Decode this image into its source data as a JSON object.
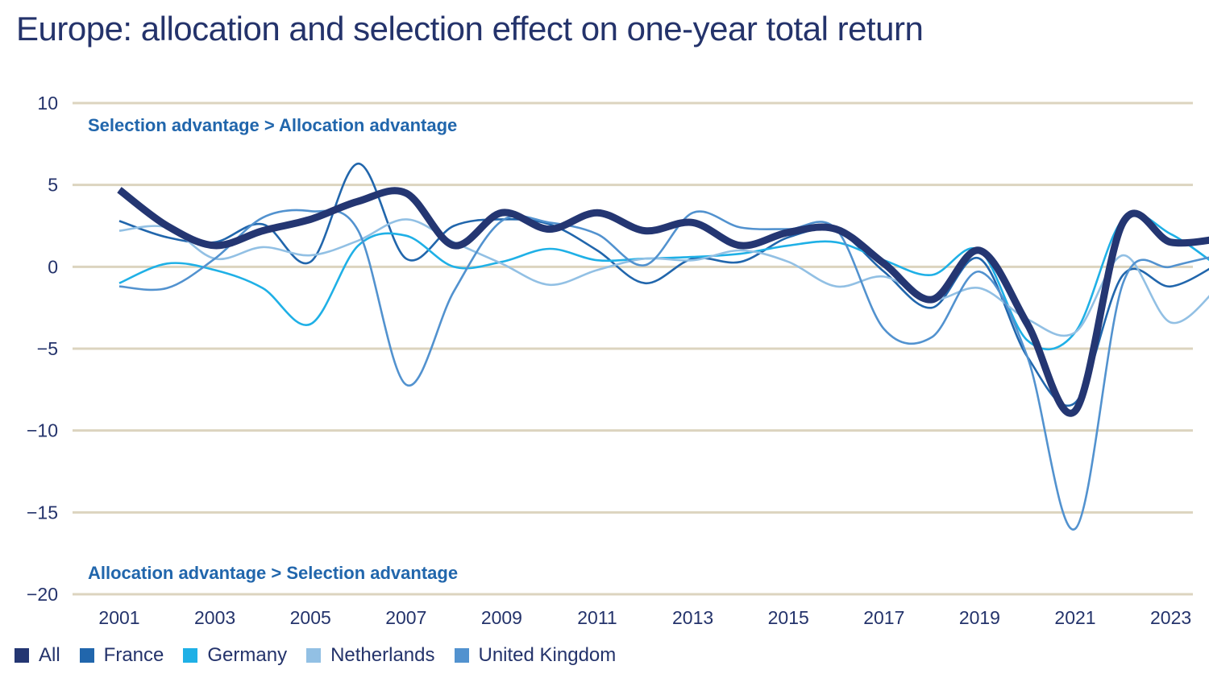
{
  "title": "Europe: allocation and selection effect on one-year total return",
  "chart_data": {
    "type": "line",
    "title": "Europe: allocation and selection effect on one-year total return",
    "xlabel": "",
    "ylabel": "",
    "x": [
      2001,
      2002,
      2003,
      2004,
      2005,
      2006,
      2007,
      2008,
      2009,
      2010,
      2011,
      2012,
      2013,
      2014,
      2015,
      2016,
      2017,
      2018,
      2019,
      2020,
      2021,
      2022,
      2023,
      2024
    ],
    "x_tick_labels": [
      "2001",
      "2003",
      "2005",
      "2007",
      "2009",
      "2011",
      "2013",
      "2015",
      "2017",
      "2019",
      "2021",
      "2023"
    ],
    "y_ticks": [
      10,
      5,
      0,
      -5,
      -10,
      -15,
      -20
    ],
    "y_tick_labels": [
      "10",
      "5",
      "0",
      "−5",
      "−10",
      "−15",
      "−20"
    ],
    "ylim": [
      -20,
      10
    ],
    "grid": "horizontal",
    "legend_position": "bottom-left",
    "annotations": [
      {
        "text": "Selection advantage > Allocation advantage",
        "position": "top-left"
      },
      {
        "text": "Allocation advantage > Selection advantage",
        "position": "bottom-left"
      }
    ],
    "series": [
      {
        "name": "All",
        "color": "#243672",
        "emphasis": true,
        "values": [
          4.7,
          2.5,
          1.3,
          2.2,
          2.9,
          4.0,
          4.5,
          1.3,
          3.3,
          2.3,
          3.3,
          2.2,
          2.7,
          1.3,
          2.1,
          2.3,
          0.2,
          -2.0,
          1.0,
          -3.5,
          -8.8,
          2.7,
          1.5,
          1.7
        ]
      },
      {
        "name": "France",
        "color": "#2166ac",
        "values": [
          2.8,
          1.8,
          1.5,
          2.6,
          0.3,
          6.3,
          0.5,
          2.5,
          2.9,
          2.6,
          1.0,
          -1.0,
          0.5,
          0.3,
          1.8,
          2.2,
          -0.3,
          -2.5,
          0.5,
          -5.5,
          -8.3,
          -0.5,
          -1.2,
          0.2
        ]
      },
      {
        "name": "Germany",
        "color": "#1fb0e6",
        "values": [
          -1.0,
          0.2,
          -0.2,
          -1.3,
          -3.5,
          1.3,
          1.9,
          0.0,
          0.3,
          1.1,
          0.4,
          0.5,
          0.6,
          0.8,
          1.3,
          1.5,
          0.4,
          -0.5,
          1.0,
          -4.5,
          -4.0,
          2.9,
          2.0,
          0.0
        ]
      },
      {
        "name": "Netherlands",
        "color": "#92c0e4",
        "values": [
          2.2,
          2.4,
          0.5,
          1.2,
          0.7,
          1.6,
          2.9,
          1.5,
          0.2,
          -1.1,
          -0.2,
          0.5,
          0.4,
          1.0,
          0.3,
          -1.2,
          -0.6,
          -2.0,
          -1.3,
          -3.2,
          -4.0,
          0.7,
          -3.4,
          -1.2
        ]
      },
      {
        "name": "United Kingdom",
        "color": "#5292cf",
        "values": [
          -1.2,
          -1.3,
          0.5,
          3.0,
          3.4,
          2.2,
          -7.2,
          -1.5,
          2.8,
          2.7,
          2.0,
          0.1,
          3.3,
          2.4,
          2.3,
          2.3,
          -3.8,
          -4.3,
          -0.3,
          -5.5,
          -16.0,
          -1.0,
          0.0,
          0.7
        ]
      }
    ]
  },
  "colors": {
    "text": "#24336b",
    "grid": "#dcd4bf",
    "annotation": "#2166ac"
  }
}
